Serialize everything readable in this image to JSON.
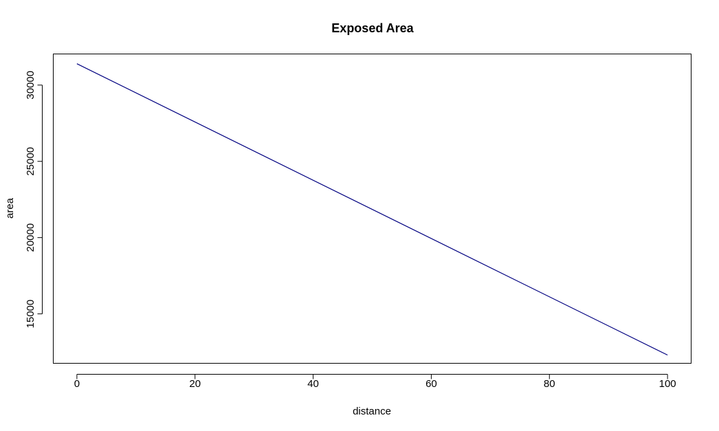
{
  "chart_data": {
    "type": "line",
    "title": "Exposed Area",
    "xlabel": "distance",
    "ylabel": "area",
    "xlim": [
      -4,
      104
    ],
    "ylim": [
      11760,
      32040
    ],
    "x_ticks": [
      0,
      20,
      40,
      60,
      80,
      100
    ],
    "y_ticks": [
      15000,
      20000,
      25000,
      30000
    ],
    "x_tick_labels": [
      "0",
      "20",
      "40",
      "60",
      "80",
      "100"
    ],
    "y_tick_labels": [
      "15000",
      "20000",
      "25000",
      "30000"
    ],
    "grid": false,
    "legend": "none",
    "series": [
      {
        "color": "#000080",
        "x": [
          0,
          100
        ],
        "y": [
          31400,
          12300
        ]
      }
    ]
  }
}
